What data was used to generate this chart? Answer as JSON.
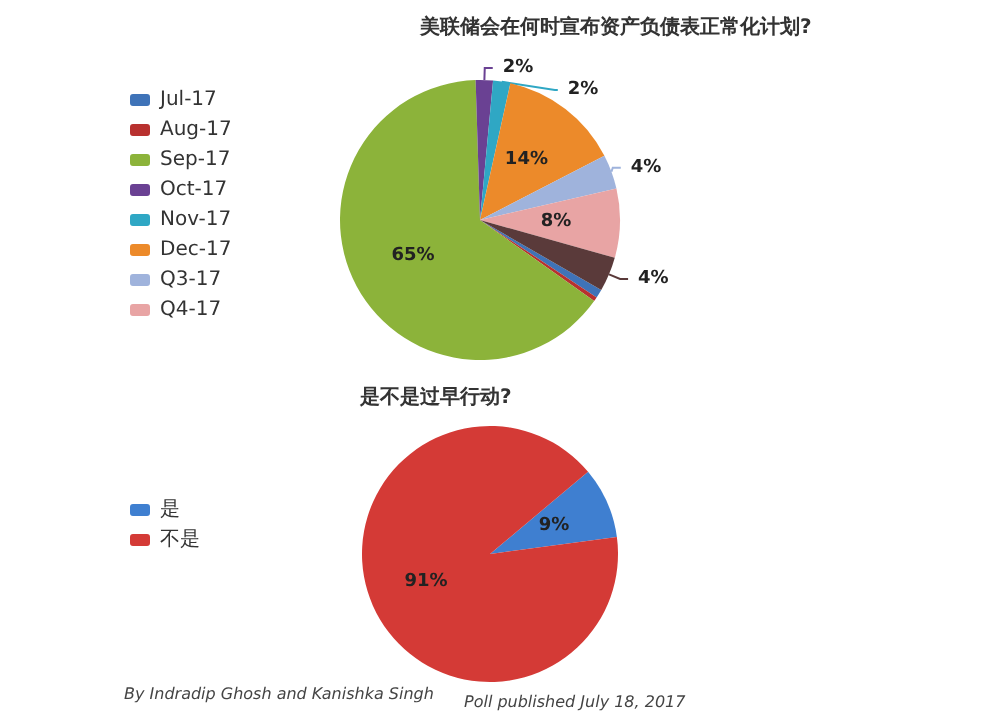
{
  "chart_data": [
    {
      "type": "pie",
      "title": "美联储会在何时宣布资产负债表正常化计划?",
      "categories": [
        "Jul-17",
        "Aug-17",
        "Sep-17",
        "Oct-17",
        "Nov-17",
        "Dec-17",
        "Q3-17",
        "Q4-17",
        null
      ],
      "values": [
        1,
        0.5,
        65,
        2,
        2,
        14,
        4,
        8,
        4
      ],
      "value_labels": [
        null,
        null,
        "65%",
        "2%",
        "2%",
        "14%",
        "4%",
        "8%",
        "4%"
      ],
      "colors": [
        "#3f73b8",
        "#b8312f",
        "#8cb33a",
        "#6a4193",
        "#2fa7c4",
        "#ec8a2a",
        "#9fb3dc",
        "#e8a4a4",
        "#5a3a3a"
      ],
      "legend": "left"
    },
    {
      "type": "pie",
      "title": "是不是过早行动?",
      "categories": [
        "是",
        "不是"
      ],
      "values": [
        9,
        91
      ],
      "value_labels": [
        "9%",
        "91%"
      ],
      "colors": [
        "#3f7fd0",
        "#d43a36"
      ],
      "legend": "left",
      "annotations": [
        "By Indradip Ghosh and Kanishka Singh",
        "Poll published July 18, 2017"
      ]
    }
  ]
}
